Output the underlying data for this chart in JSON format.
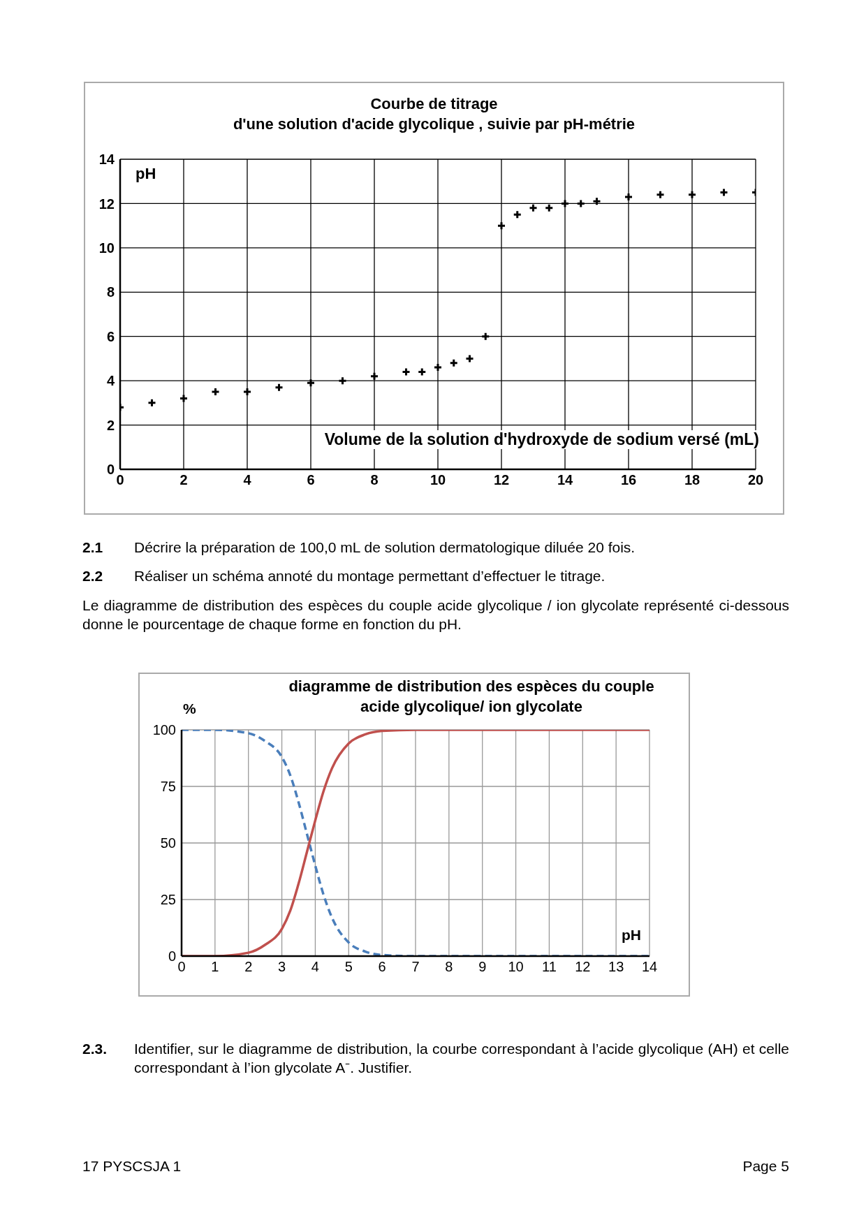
{
  "chart_data": [
    {
      "type": "scatter",
      "title": "Courbe de titrage\nd'une solution d'acide glycolique , suivie par pH-métrie",
      "xlabel": "Volume de la solution d'hydroxyde de sodium versé (mL)",
      "ylabel": "pH",
      "x": [
        0,
        1,
        2,
        3,
        4,
        5,
        6,
        7,
        8,
        9,
        9.5,
        10,
        10.5,
        11,
        11.5,
        12,
        12.5,
        13,
        13.5,
        14,
        14.5,
        15,
        16,
        17,
        18,
        19,
        20
      ],
      "series": [
        {
          "color": "#000000",
          "values": [
            2.8,
            3.0,
            3.2,
            3.5,
            3.5,
            3.7,
            3.9,
            4.0,
            4.2,
            4.4,
            4.4,
            4.6,
            4.8,
            5.0,
            6.0,
            11.0,
            11.5,
            11.8,
            11.8,
            12.0,
            12.0,
            12.1,
            12.3,
            12.4,
            12.4,
            12.5,
            12.5
          ]
        }
      ],
      "xlim": [
        0,
        20
      ],
      "xticks": [
        0,
        2,
        4,
        6,
        8,
        10,
        12,
        14,
        16,
        18,
        20
      ],
      "ylim": [
        0,
        14
      ],
      "yticks": [
        0,
        2,
        4,
        6,
        8,
        10,
        12,
        14
      ],
      "grid": true,
      "marker": "cross",
      "annotations": [
        "2.1\tDécrire la préparation de 100,0 mL de solution dermatologique diluée 20 fois.",
        "2.2\tRéaliser un schéma annoté du montage permettant d’effectuer le titrage.",
        "Le diagramme de distribution des espèces du couple acide glycolique / ion glycolate représenté ci-dessous donne le pourcentage de chaque forme en fonction du pH."
      ]
    },
    {
      "type": "line",
      "title": "diagramme de distribution des espèces du couple\nacide glycolique/ ion glycolate",
      "xlabel": "pH",
      "ylabel": "%",
      "x": [
        0,
        1,
        2,
        2.5,
        3,
        3.25,
        3.5,
        3.75,
        4,
        4.25,
        4.5,
        5,
        5.5,
        6,
        7,
        14
      ],
      "series": [
        {
          "color": "#4a7ebb",
          "line_style": "dashed",
          "values": [
            100,
            100,
            98.5,
            95,
            88,
            80,
            68,
            54,
            40,
            27,
            17,
            6,
            2,
            0.5,
            0,
            0
          ]
        },
        {
          "color": "#c0504d",
          "line_style": "solid",
          "values": [
            0,
            0,
            1.5,
            5,
            12,
            20,
            32,
            46,
            60,
            73,
            83,
            94,
            98,
            99.5,
            100,
            100
          ]
        }
      ],
      "xlim": [
        0,
        14
      ],
      "xticks": [
        0,
        1,
        2,
        3,
        4,
        5,
        6,
        7,
        8,
        9,
        10,
        11,
        12,
        13,
        14
      ],
      "ylim": [
        0,
        100
      ],
      "yticks": [
        0,
        25,
        50,
        75,
        100
      ],
      "grid": true,
      "marker": "none",
      "annotations": [
        "2.3.\tIdentifier, sur le diagramme de distribution, la courbe correspondant à l’acide glycolique (AH) et celle correspondant à l’ion glycolate  A⁻. Justifier.",
        "17 PYSCSJA 1",
        "Page 5"
      ]
    }
  ]
}
